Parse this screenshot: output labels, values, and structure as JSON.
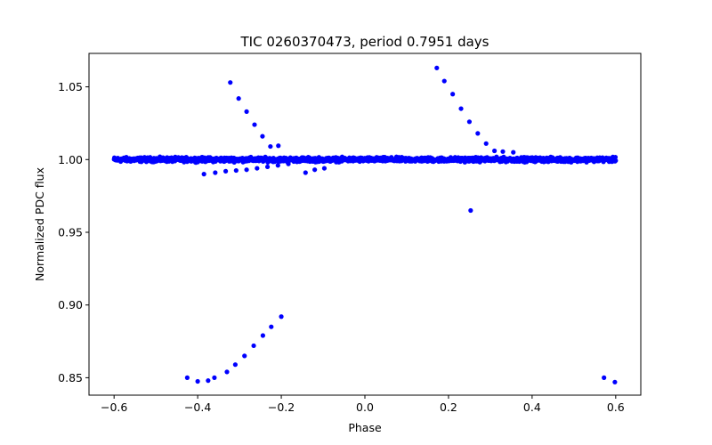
{
  "chart_data": {
    "type": "scatter",
    "title": "TIC 0260370473, period 0.7951 days",
    "xlabel": "Phase",
    "ylabel": "Normalized PDC flux",
    "xlim": [
      -0.66,
      0.66
    ],
    "ylim": [
      0.838,
      1.073
    ],
    "grid": false,
    "legend": "none",
    "marker_color": "#0000ff",
    "x_ticks": [
      {
        "value": -0.6,
        "label": "−0.6"
      },
      {
        "value": -0.4,
        "label": "−0.4"
      },
      {
        "value": -0.2,
        "label": "−0.2"
      },
      {
        "value": 0.0,
        "label": "0.0"
      },
      {
        "value": 0.2,
        "label": "0.2"
      },
      {
        "value": 0.4,
        "label": "0.4"
      },
      {
        "value": 0.6,
        "label": "0.6"
      }
    ],
    "y_ticks": [
      {
        "value": 0.85,
        "label": "0.85"
      },
      {
        "value": 0.9,
        "label": "0.90"
      },
      {
        "value": 0.95,
        "label": "0.95"
      },
      {
        "value": 1.0,
        "label": "1.00"
      },
      {
        "value": 1.05,
        "label": "1.05"
      }
    ],
    "series": [
      {
        "name": "baseline flux (dense band)",
        "x_range": [
          -0.6,
          0.6
        ],
        "y_center": 1.0,
        "y_spread": 0.004,
        "description": "thousands of points forming a continuous band at ~1.000 across all phases"
      },
      {
        "name": "outliers",
        "x": [
          -0.322,
          -0.302,
          -0.283,
          -0.264,
          -0.245,
          -0.226,
          -0.207,
          -0.385,
          -0.358,
          -0.333,
          -0.308,
          -0.283,
          -0.258,
          -0.233,
          -0.208,
          -0.183,
          -0.142,
          -0.12,
          -0.097,
          0.172,
          0.19,
          0.21,
          0.23,
          0.25,
          0.27,
          0.29,
          0.31,
          0.33,
          0.355,
          0.253,
          -0.2,
          -0.224,
          -0.244,
          -0.266,
          -0.288,
          -0.31,
          -0.33,
          -0.36,
          -0.375,
          -0.4,
          -0.425,
          0.572,
          0.598
        ],
        "y": [
          1.053,
          1.042,
          1.033,
          1.024,
          1.016,
          1.009,
          1.0095,
          0.99,
          0.991,
          0.992,
          0.9925,
          0.993,
          0.994,
          0.995,
          0.996,
          0.997,
          0.991,
          0.993,
          0.994,
          1.063,
          1.054,
          1.045,
          1.035,
          1.026,
          1.018,
          1.011,
          1.006,
          1.0055,
          1.005,
          0.965,
          0.892,
          0.885,
          0.879,
          0.872,
          0.865,
          0.859,
          0.854,
          0.85,
          0.848,
          0.8475,
          0.85,
          0.85,
          0.847
        ]
      }
    ]
  }
}
